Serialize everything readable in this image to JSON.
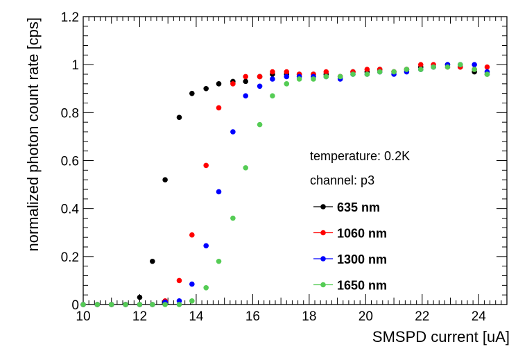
{
  "chart_data": {
    "type": "scatter",
    "title": "",
    "xlabel": "SMSPD current [uA]",
    "ylabel": "normalized photon count rate [cps]",
    "xlim": [
      10,
      25
    ],
    "ylim": [
      0,
      1.2
    ],
    "x_ticks": [
      "10",
      "12",
      "14",
      "16",
      "18",
      "20",
      "22",
      "24"
    ],
    "y_ticks": [
      "0",
      "0.2",
      "0.4",
      "0.6",
      "0.8",
      "1",
      "1.2"
    ],
    "annotations": [
      "temperature: 0.2K",
      "channel: p3"
    ],
    "legend_position": "center-right",
    "series": [
      {
        "name": "635 nm",
        "color": "#000000",
        "x": [
          10.0,
          10.5,
          11.0,
          11.5,
          12.0,
          12.45,
          12.9,
          13.4,
          13.85,
          14.35,
          14.8,
          15.3,
          15.75,
          16.25,
          16.7,
          17.2,
          17.65,
          18.15,
          18.6,
          19.1,
          19.55,
          20.05,
          20.5,
          21.0,
          21.45,
          21.95,
          22.4,
          22.9,
          23.35,
          23.85,
          24.3
        ],
        "y": [
          0.0,
          0.0,
          0.0,
          0.0,
          0.03,
          0.18,
          0.52,
          0.78,
          0.88,
          0.9,
          0.92,
          0.93,
          0.93,
          0.95,
          0.96,
          0.96,
          0.96,
          0.96,
          0.96,
          0.95,
          0.97,
          0.97,
          0.98,
          0.97,
          0.98,
          0.99,
          0.99,
          1.0,
          0.99,
          0.97,
          0.96
        ]
      },
      {
        "name": "1060 nm",
        "color": "#ff0000",
        "x": [
          10.0,
          10.5,
          11.0,
          11.5,
          12.0,
          12.45,
          12.9,
          13.4,
          13.85,
          14.35,
          14.8,
          15.3,
          15.75,
          16.25,
          16.7,
          17.2,
          17.65,
          18.15,
          18.6,
          19.1,
          19.55,
          20.05,
          20.5,
          21.0,
          21.45,
          21.95,
          22.4,
          22.9,
          23.35,
          23.85,
          24.3
        ],
        "y": [
          0.0,
          0.0,
          0.0,
          0.0,
          0.0,
          0.0,
          0.015,
          0.1,
          0.29,
          0.58,
          0.82,
          0.92,
          0.95,
          0.95,
          0.97,
          0.97,
          0.96,
          0.96,
          0.97,
          0.95,
          0.97,
          0.98,
          0.98,
          0.97,
          0.98,
          1.0,
          1.0,
          0.99,
          0.99,
          0.98,
          0.99
        ]
      },
      {
        "name": "1300 nm",
        "color": "#0000ff",
        "x": [
          10.0,
          10.5,
          11.0,
          11.5,
          12.0,
          12.45,
          12.9,
          13.4,
          13.85,
          14.35,
          14.8,
          15.3,
          15.75,
          16.25,
          16.7,
          17.2,
          17.65,
          18.15,
          18.6,
          19.1,
          19.55,
          20.05,
          20.5,
          21.0,
          21.45,
          21.95,
          22.4,
          22.9,
          23.35,
          23.85,
          24.3
        ],
        "y": [
          0.0,
          0.0,
          0.0,
          0.0,
          0.0,
          0.0,
          0.01,
          0.015,
          0.085,
          0.245,
          0.47,
          0.72,
          0.87,
          0.91,
          0.94,
          0.95,
          0.95,
          0.95,
          0.95,
          0.94,
          0.96,
          0.96,
          0.97,
          0.96,
          0.97,
          0.98,
          0.99,
          1.0,
          1.0,
          1.0,
          0.97
        ]
      },
      {
        "name": "1650 nm",
        "color": "#55cc55",
        "x": [
          10.0,
          10.5,
          11.0,
          11.5,
          12.0,
          12.45,
          12.9,
          13.4,
          13.85,
          14.35,
          14.8,
          15.3,
          15.75,
          16.25,
          16.7,
          17.2,
          17.65,
          18.15,
          18.6,
          19.1,
          19.55,
          20.05,
          20.5,
          21.0,
          21.45,
          21.95,
          22.4,
          22.9,
          23.35,
          23.85,
          24.3
        ],
        "y": [
          0.0,
          0.0,
          0.0,
          0.0,
          0.0,
          0.0,
          0.0,
          0.0,
          0.015,
          0.07,
          0.18,
          0.36,
          0.57,
          0.75,
          0.87,
          0.92,
          0.94,
          0.94,
          0.95,
          0.95,
          0.96,
          0.96,
          0.97,
          0.97,
          0.98,
          0.98,
          0.99,
          0.99,
          1.0,
          0.98,
          0.96
        ]
      }
    ]
  }
}
